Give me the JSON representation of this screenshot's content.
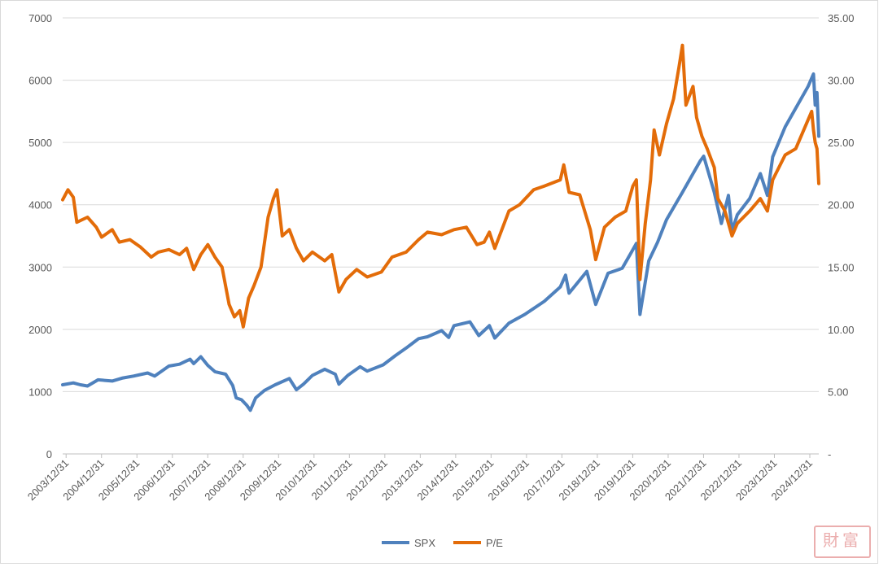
{
  "chart_data": {
    "type": "line",
    "title": "",
    "dual_axis": true,
    "grid": true,
    "legend_position": "bottom-center",
    "x": {
      "tick_labels": [
        "2003/12/31",
        "2004/12/31",
        "2005/12/31",
        "2006/12/31",
        "2007/12/31",
        "2008/12/31",
        "2009/12/31",
        "2010/12/31",
        "2011/12/31",
        "2012/12/31",
        "2013/12/31",
        "2014/12/31",
        "2015/12/31",
        "2016/12/31",
        "2017/12/31",
        "2018/12/31",
        "2019/12/31",
        "2020/12/31",
        "2021/12/31",
        "2022/12/31",
        "2023/12/31",
        "2024/12/31"
      ],
      "range": [
        2003.9,
        2025.25
      ]
    },
    "y_left": {
      "range": [
        0,
        7000
      ],
      "tick_labels": [
        "0",
        "1000",
        "2000",
        "3000",
        "4000",
        "5000",
        "6000",
        "7000"
      ]
    },
    "y_right": {
      "range": [
        0,
        35
      ],
      "tick_labels": [
        "-",
        "5.00",
        "10.00",
        "15.00",
        "20.00",
        "25.00",
        "30.00",
        "35.00"
      ]
    },
    "series": [
      {
        "name": "SPX",
        "axis": "left",
        "color": "#4f81bd",
        "points": [
          [
            2003.9,
            1110
          ],
          [
            2004.2,
            1140
          ],
          [
            2004.4,
            1110
          ],
          [
            2004.6,
            1090
          ],
          [
            2004.9,
            1190
          ],
          [
            2005.3,
            1170
          ],
          [
            2005.6,
            1220
          ],
          [
            2005.9,
            1250
          ],
          [
            2006.3,
            1300
          ],
          [
            2006.5,
            1250
          ],
          [
            2006.9,
            1410
          ],
          [
            2007.2,
            1440
          ],
          [
            2007.5,
            1520
          ],
          [
            2007.6,
            1450
          ],
          [
            2007.8,
            1560
          ],
          [
            2008.0,
            1420
          ],
          [
            2008.2,
            1320
          ],
          [
            2008.5,
            1280
          ],
          [
            2008.7,
            1100
          ],
          [
            2008.8,
            900
          ],
          [
            2008.95,
            870
          ],
          [
            2009.1,
            780
          ],
          [
            2009.2,
            700
          ],
          [
            2009.35,
            900
          ],
          [
            2009.6,
            1020
          ],
          [
            2009.9,
            1110
          ],
          [
            2010.3,
            1210
          ],
          [
            2010.5,
            1030
          ],
          [
            2010.7,
            1120
          ],
          [
            2010.95,
            1260
          ],
          [
            2011.3,
            1360
          ],
          [
            2011.6,
            1280
          ],
          [
            2011.7,
            1120
          ],
          [
            2011.95,
            1260
          ],
          [
            2012.3,
            1400
          ],
          [
            2012.5,
            1330
          ],
          [
            2012.95,
            1430
          ],
          [
            2013.3,
            1580
          ],
          [
            2013.6,
            1700
          ],
          [
            2013.95,
            1850
          ],
          [
            2014.2,
            1880
          ],
          [
            2014.6,
            1980
          ],
          [
            2014.8,
            1870
          ],
          [
            2014.95,
            2060
          ],
          [
            2015.4,
            2120
          ],
          [
            2015.65,
            1900
          ],
          [
            2015.95,
            2060
          ],
          [
            2016.1,
            1860
          ],
          [
            2016.5,
            2100
          ],
          [
            2016.95,
            2240
          ],
          [
            2017.5,
            2450
          ],
          [
            2017.95,
            2680
          ],
          [
            2018.1,
            2870
          ],
          [
            2018.2,
            2580
          ],
          [
            2018.7,
            2930
          ],
          [
            2018.95,
            2400
          ],
          [
            2019.3,
            2900
          ],
          [
            2019.7,
            2980
          ],
          [
            2019.95,
            3230
          ],
          [
            2020.1,
            3380
          ],
          [
            2020.2,
            2240
          ],
          [
            2020.45,
            3100
          ],
          [
            2020.7,
            3400
          ],
          [
            2020.95,
            3760
          ],
          [
            2021.4,
            4200
          ],
          [
            2021.9,
            4700
          ],
          [
            2022.0,
            4780
          ],
          [
            2022.3,
            4200
          ],
          [
            2022.5,
            3700
          ],
          [
            2022.7,
            4150
          ],
          [
            2022.8,
            3580
          ],
          [
            2022.95,
            3840
          ],
          [
            2023.3,
            4100
          ],
          [
            2023.6,
            4500
          ],
          [
            2023.8,
            4150
          ],
          [
            2023.95,
            4770
          ],
          [
            2024.3,
            5250
          ],
          [
            2024.6,
            5550
          ],
          [
            2024.95,
            5900
          ],
          [
            2025.1,
            6100
          ],
          [
            2025.15,
            5600
          ],
          [
            2025.2,
            5800
          ],
          [
            2025.25,
            5100
          ]
        ]
      },
      {
        "name": "P/E",
        "axis": "right",
        "color": "#e36c09",
        "points": [
          [
            2003.9,
            20.4
          ],
          [
            2004.05,
            21.2
          ],
          [
            2004.2,
            20.6
          ],
          [
            2004.3,
            18.6
          ],
          [
            2004.6,
            19.0
          ],
          [
            2004.85,
            18.2
          ],
          [
            2005.0,
            17.4
          ],
          [
            2005.3,
            18.0
          ],
          [
            2005.5,
            17.0
          ],
          [
            2005.8,
            17.2
          ],
          [
            2006.1,
            16.6
          ],
          [
            2006.4,
            15.8
          ],
          [
            2006.6,
            16.2
          ],
          [
            2006.9,
            16.4
          ],
          [
            2007.2,
            16.0
          ],
          [
            2007.4,
            16.5
          ],
          [
            2007.6,
            14.8
          ],
          [
            2007.8,
            16.0
          ],
          [
            2008.0,
            16.8
          ],
          [
            2008.2,
            15.8
          ],
          [
            2008.4,
            15.0
          ],
          [
            2008.6,
            12.0
          ],
          [
            2008.75,
            11.0
          ],
          [
            2008.9,
            11.5
          ],
          [
            2009.0,
            10.2
          ],
          [
            2009.15,
            12.5
          ],
          [
            2009.3,
            13.5
          ],
          [
            2009.5,
            15.0
          ],
          [
            2009.7,
            19.0
          ],
          [
            2009.85,
            20.5
          ],
          [
            2009.95,
            21.2
          ],
          [
            2010.1,
            17.5
          ],
          [
            2010.3,
            18.0
          ],
          [
            2010.5,
            16.5
          ],
          [
            2010.7,
            15.5
          ],
          [
            2010.95,
            16.2
          ],
          [
            2011.3,
            15.5
          ],
          [
            2011.5,
            16.0
          ],
          [
            2011.7,
            13.0
          ],
          [
            2011.9,
            14.0
          ],
          [
            2012.2,
            14.8
          ],
          [
            2012.5,
            14.2
          ],
          [
            2012.9,
            14.6
          ],
          [
            2013.2,
            15.8
          ],
          [
            2013.6,
            16.2
          ],
          [
            2013.95,
            17.2
          ],
          [
            2014.2,
            17.8
          ],
          [
            2014.6,
            17.6
          ],
          [
            2014.95,
            18.0
          ],
          [
            2015.3,
            18.2
          ],
          [
            2015.6,
            16.8
          ],
          [
            2015.8,
            17.0
          ],
          [
            2015.95,
            17.8
          ],
          [
            2016.1,
            16.5
          ],
          [
            2016.5,
            19.5
          ],
          [
            2016.8,
            20.0
          ],
          [
            2017.2,
            21.2
          ],
          [
            2017.5,
            21.5
          ],
          [
            2017.95,
            22.0
          ],
          [
            2018.05,
            23.2
          ],
          [
            2018.2,
            21.0
          ],
          [
            2018.5,
            20.8
          ],
          [
            2018.8,
            18.0
          ],
          [
            2018.95,
            15.6
          ],
          [
            2019.2,
            18.2
          ],
          [
            2019.5,
            19.0
          ],
          [
            2019.8,
            19.5
          ],
          [
            2020.0,
            21.5
          ],
          [
            2020.1,
            22.0
          ],
          [
            2020.2,
            14.0
          ],
          [
            2020.35,
            18.5
          ],
          [
            2020.5,
            22.0
          ],
          [
            2020.6,
            26.0
          ],
          [
            2020.75,
            24.0
          ],
          [
            2020.95,
            26.5
          ],
          [
            2021.15,
            28.5
          ],
          [
            2021.3,
            31.0
          ],
          [
            2021.4,
            32.8
          ],
          [
            2021.5,
            28.0
          ],
          [
            2021.7,
            29.5
          ],
          [
            2021.8,
            27.0
          ],
          [
            2021.95,
            25.5
          ],
          [
            2022.1,
            24.5
          ],
          [
            2022.3,
            23.0
          ],
          [
            2022.4,
            20.5
          ],
          [
            2022.6,
            19.5
          ],
          [
            2022.8,
            17.5
          ],
          [
            2022.95,
            18.5
          ],
          [
            2023.3,
            19.5
          ],
          [
            2023.6,
            20.5
          ],
          [
            2023.8,
            19.5
          ],
          [
            2023.95,
            22.0
          ],
          [
            2024.3,
            24.0
          ],
          [
            2024.6,
            24.5
          ],
          [
            2024.9,
            26.5
          ],
          [
            2025.05,
            27.5
          ],
          [
            2025.1,
            26.0
          ],
          [
            2025.15,
            25.0
          ],
          [
            2025.2,
            24.5
          ],
          [
            2025.25,
            21.7
          ]
        ]
      }
    ]
  },
  "legend": [
    {
      "label": "SPX",
      "color": "#4f81bd"
    },
    {
      "label": "P/E",
      "color": "#e36c09"
    }
  ],
  "stamp_text": "財富"
}
